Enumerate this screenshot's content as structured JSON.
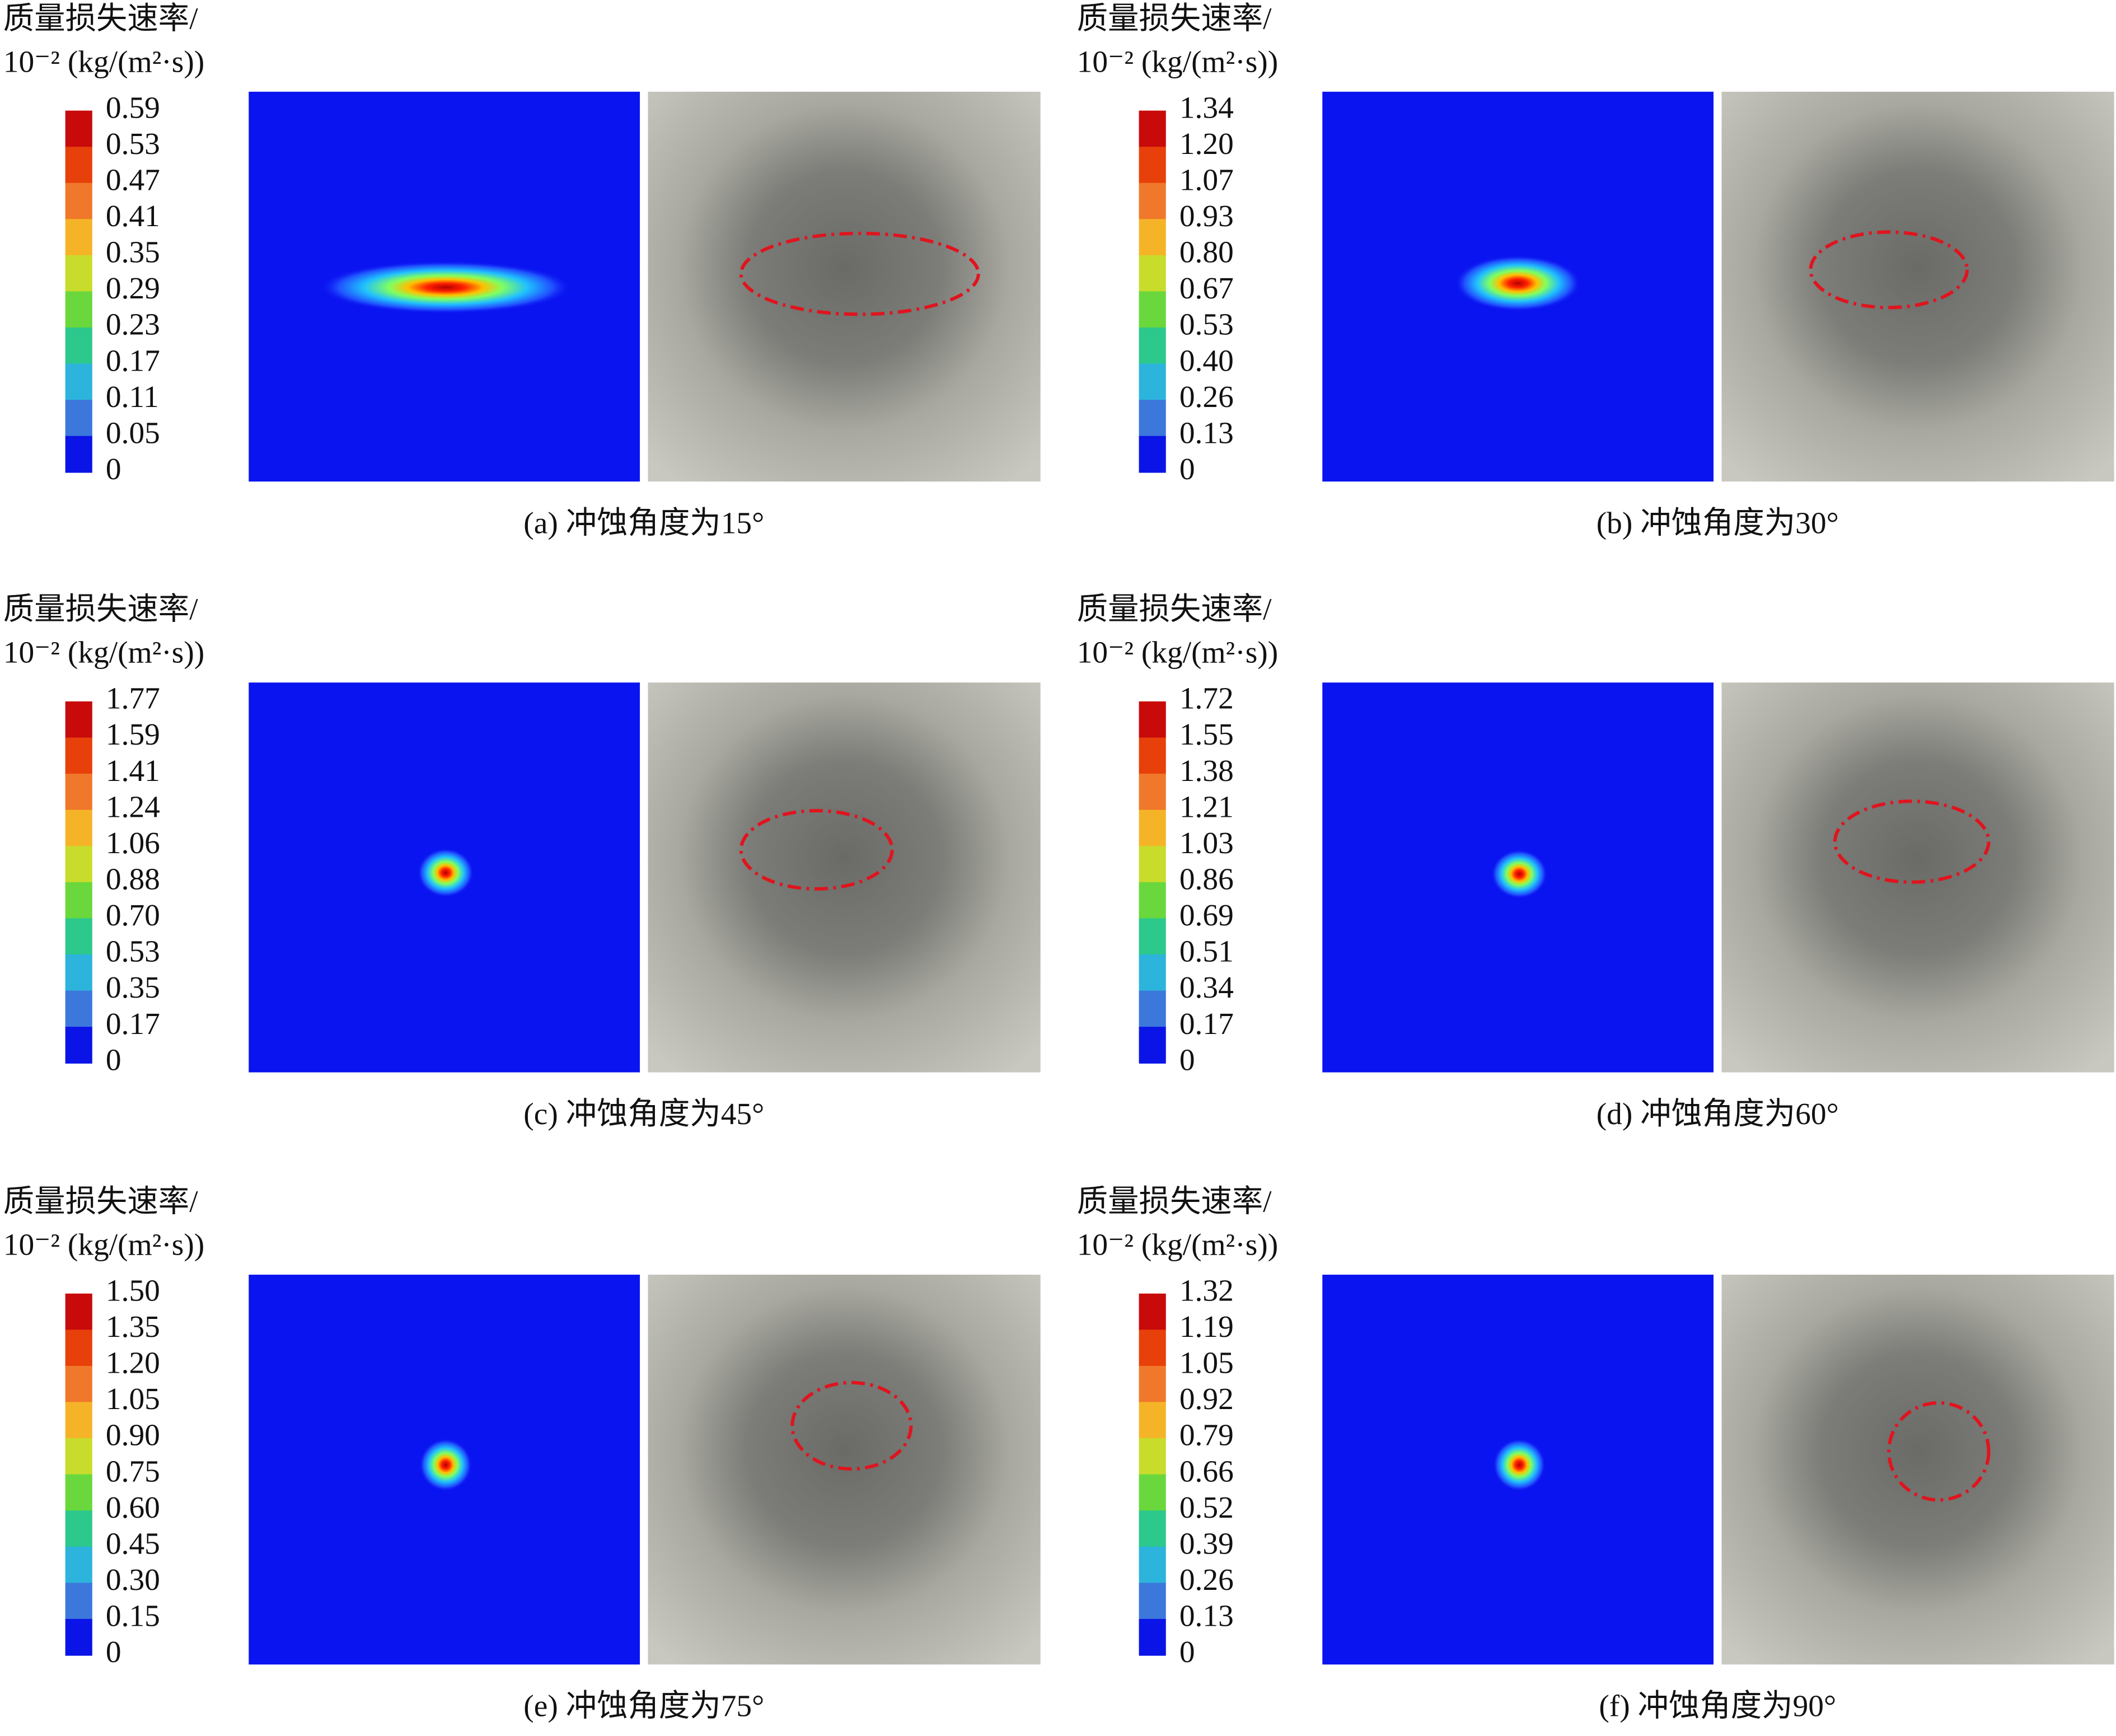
{
  "panels": [
    {
      "legend_title": [
        "质量损失速率/",
        "10⁻² (kg/(m²·s))"
      ],
      "ticks": [
        "0.59",
        "0.53",
        "0.47",
        "0.41",
        "0.35",
        "0.29",
        "0.23",
        "0.17",
        "0.11",
        "0.05",
        "0"
      ],
      "caption": "(a) 冲蚀角度为15°"
    },
    {
      "legend_title": [
        "质量损失速率/",
        "10⁻² (kg/(m²·s))"
      ],
      "ticks": [
        "1.34",
        "1.20",
        "1.07",
        "0.93",
        "0.80",
        "0.67",
        "0.53",
        "0.40",
        "0.26",
        "0.13",
        "0"
      ],
      "caption": "(b) 冲蚀角度为30°"
    },
    {
      "legend_title": [
        "质量损失速率/",
        "10⁻² (kg/(m²·s))"
      ],
      "ticks": [
        "1.77",
        "1.59",
        "1.41",
        "1.24",
        "1.06",
        "0.88",
        "0.70",
        "0.53",
        "0.35",
        "0.17",
        "0"
      ],
      "caption": "(c) 冲蚀角度为45°"
    },
    {
      "legend_title": [
        "质量损失速率/",
        "10⁻² (kg/(m²·s))"
      ],
      "ticks": [
        "1.72",
        "1.55",
        "1.38",
        "1.21",
        "1.03",
        "0.86",
        "0.69",
        "0.51",
        "0.34",
        "0.17",
        "0"
      ],
      "caption": "(d) 冲蚀角度为60°"
    },
    {
      "legend_title": [
        "质量损失速率/",
        "10⁻² (kg/(m²·s))"
      ],
      "ticks": [
        "1.50",
        "1.35",
        "1.20",
        "1.05",
        "0.90",
        "0.75",
        "0.60",
        "0.45",
        "0.30",
        "0.15",
        "0"
      ],
      "caption": "(e) 冲蚀角度为75°"
    },
    {
      "legend_title": [
        "质量损失速率/",
        "10⁻² (kg/(m²·s))"
      ],
      "ticks": [
        "1.32",
        "1.19",
        "1.05",
        "0.92",
        "0.79",
        "0.66",
        "0.52",
        "0.39",
        "0.26",
        "0.13",
        "0"
      ],
      "caption": "(f) 冲蚀角度为90°"
    }
  ]
}
